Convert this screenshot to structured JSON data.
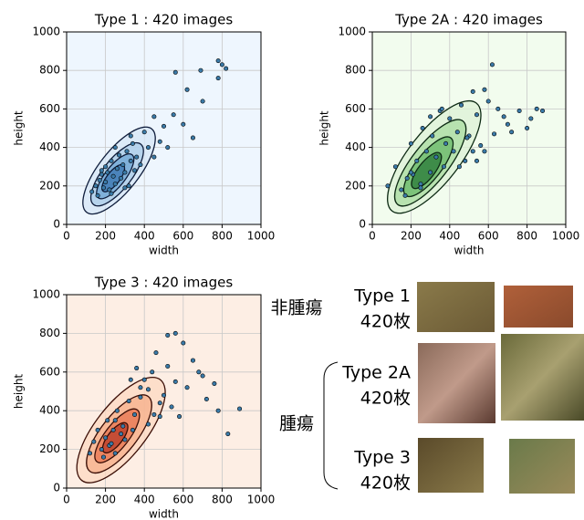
{
  "chart_data": [
    {
      "type": "scatter",
      "title": "Type 1 : 420 images",
      "xlabel": "width",
      "ylabel": "height",
      "xlim": [
        0,
        1000
      ],
      "ylim": [
        0,
        1000
      ],
      "xticks": [
        0,
        200,
        400,
        600,
        800,
        1000
      ],
      "yticks": [
        0,
        200,
        400,
        600,
        800,
        1000
      ],
      "grid": true,
      "background": "#eef6fe",
      "color": "#3a7aa8",
      "x": [
        130,
        150,
        160,
        170,
        180,
        190,
        200,
        200,
        210,
        220,
        230,
        240,
        250,
        260,
        270,
        280,
        290,
        300,
        310,
        320,
        330,
        340,
        350,
        360,
        380,
        400,
        420,
        450,
        480,
        500,
        520,
        550,
        600,
        620,
        650,
        690,
        700,
        780,
        780,
        800,
        820,
        560,
        450,
        330,
        250,
        180,
        230,
        300
      ],
      "values": [
        170,
        200,
        150,
        230,
        260,
        190,
        300,
        220,
        270,
        180,
        330,
        250,
        210,
        290,
        360,
        240,
        310,
        270,
        380,
        200,
        330,
        420,
        280,
        350,
        310,
        480,
        400,
        560,
        430,
        510,
        400,
        570,
        520,
        700,
        450,
        800,
        640,
        760,
        850,
        830,
        810,
        790,
        350,
        460,
        400,
        280,
        160,
        190
      ]
    },
    {
      "type": "scatter",
      "title": "Type 2A : 420 images",
      "xlabel": "width",
      "ylabel": "height",
      "xlim": [
        0,
        1000
      ],
      "ylim": [
        0,
        1000
      ],
      "xticks": [
        0,
        200,
        400,
        600,
        800,
        1000
      ],
      "yticks": [
        0,
        200,
        400,
        600,
        800,
        1000
      ],
      "grid": true,
      "background": "#f2fcee",
      "color": "#3a7aa8",
      "x": [
        80,
        120,
        150,
        180,
        200,
        210,
        230,
        250,
        260,
        280,
        300,
        310,
        330,
        350,
        370,
        380,
        400,
        420,
        440,
        460,
        480,
        500,
        520,
        540,
        560,
        580,
        600,
        620,
        650,
        680,
        700,
        720,
        760,
        800,
        820,
        850,
        880,
        580,
        540,
        360,
        300,
        250,
        200,
        170,
        450,
        490,
        520,
        630
      ],
      "values": [
        200,
        300,
        180,
        240,
        420,
        260,
        330,
        210,
        500,
        380,
        270,
        460,
        350,
        590,
        300,
        420,
        550,
        380,
        480,
        620,
        330,
        460,
        690,
        570,
        410,
        700,
        640,
        830,
        600,
        560,
        520,
        480,
        590,
        500,
        550,
        600,
        590,
        380,
        330,
        600,
        560,
        190,
        270,
        150,
        300,
        450,
        380,
        470
      ]
    },
    {
      "type": "scatter",
      "title": "Type 3 : 420 images",
      "xlabel": "width",
      "ylabel": "height",
      "xlim": [
        0,
        1000
      ],
      "ylim": [
        0,
        1000
      ],
      "xticks": [
        0,
        200,
        400,
        600,
        800,
        1000
      ],
      "yticks": [
        0,
        200,
        400,
        600,
        800,
        1000
      ],
      "grid": true,
      "background": "#fdeee4",
      "color": "#3a7aa8",
      "x": [
        120,
        140,
        160,
        180,
        200,
        210,
        220,
        240,
        250,
        260,
        280,
        290,
        300,
        320,
        340,
        350,
        360,
        380,
        400,
        420,
        440,
        460,
        480,
        500,
        520,
        540,
        560,
        580,
        600,
        620,
        650,
        680,
        700,
        720,
        760,
        780,
        830,
        890,
        560,
        520,
        480,
        380,
        330,
        250,
        190,
        230,
        450,
        420
      ],
      "values": [
        180,
        240,
        300,
        200,
        260,
        350,
        220,
        300,
        180,
        400,
        280,
        320,
        250,
        450,
        300,
        380,
        620,
        520,
        560,
        330,
        600,
        700,
        440,
        480,
        790,
        420,
        800,
        370,
        750,
        520,
        660,
        600,
        580,
        460,
        540,
        400,
        280,
        410,
        550,
        630,
        370,
        470,
        560,
        350,
        160,
        230,
        380,
        510
      ]
    }
  ],
  "panel": {
    "groups": [
      {
        "label": "非腫瘍",
        "types": [
          {
            "name": "Type 1",
            "count": "420枚"
          }
        ]
      },
      {
        "label": "腫瘍",
        "types": [
          {
            "name": "Type 2A",
            "count": "420枚"
          },
          {
            "name": "Type 3",
            "count": "420枚"
          }
        ]
      }
    ]
  }
}
